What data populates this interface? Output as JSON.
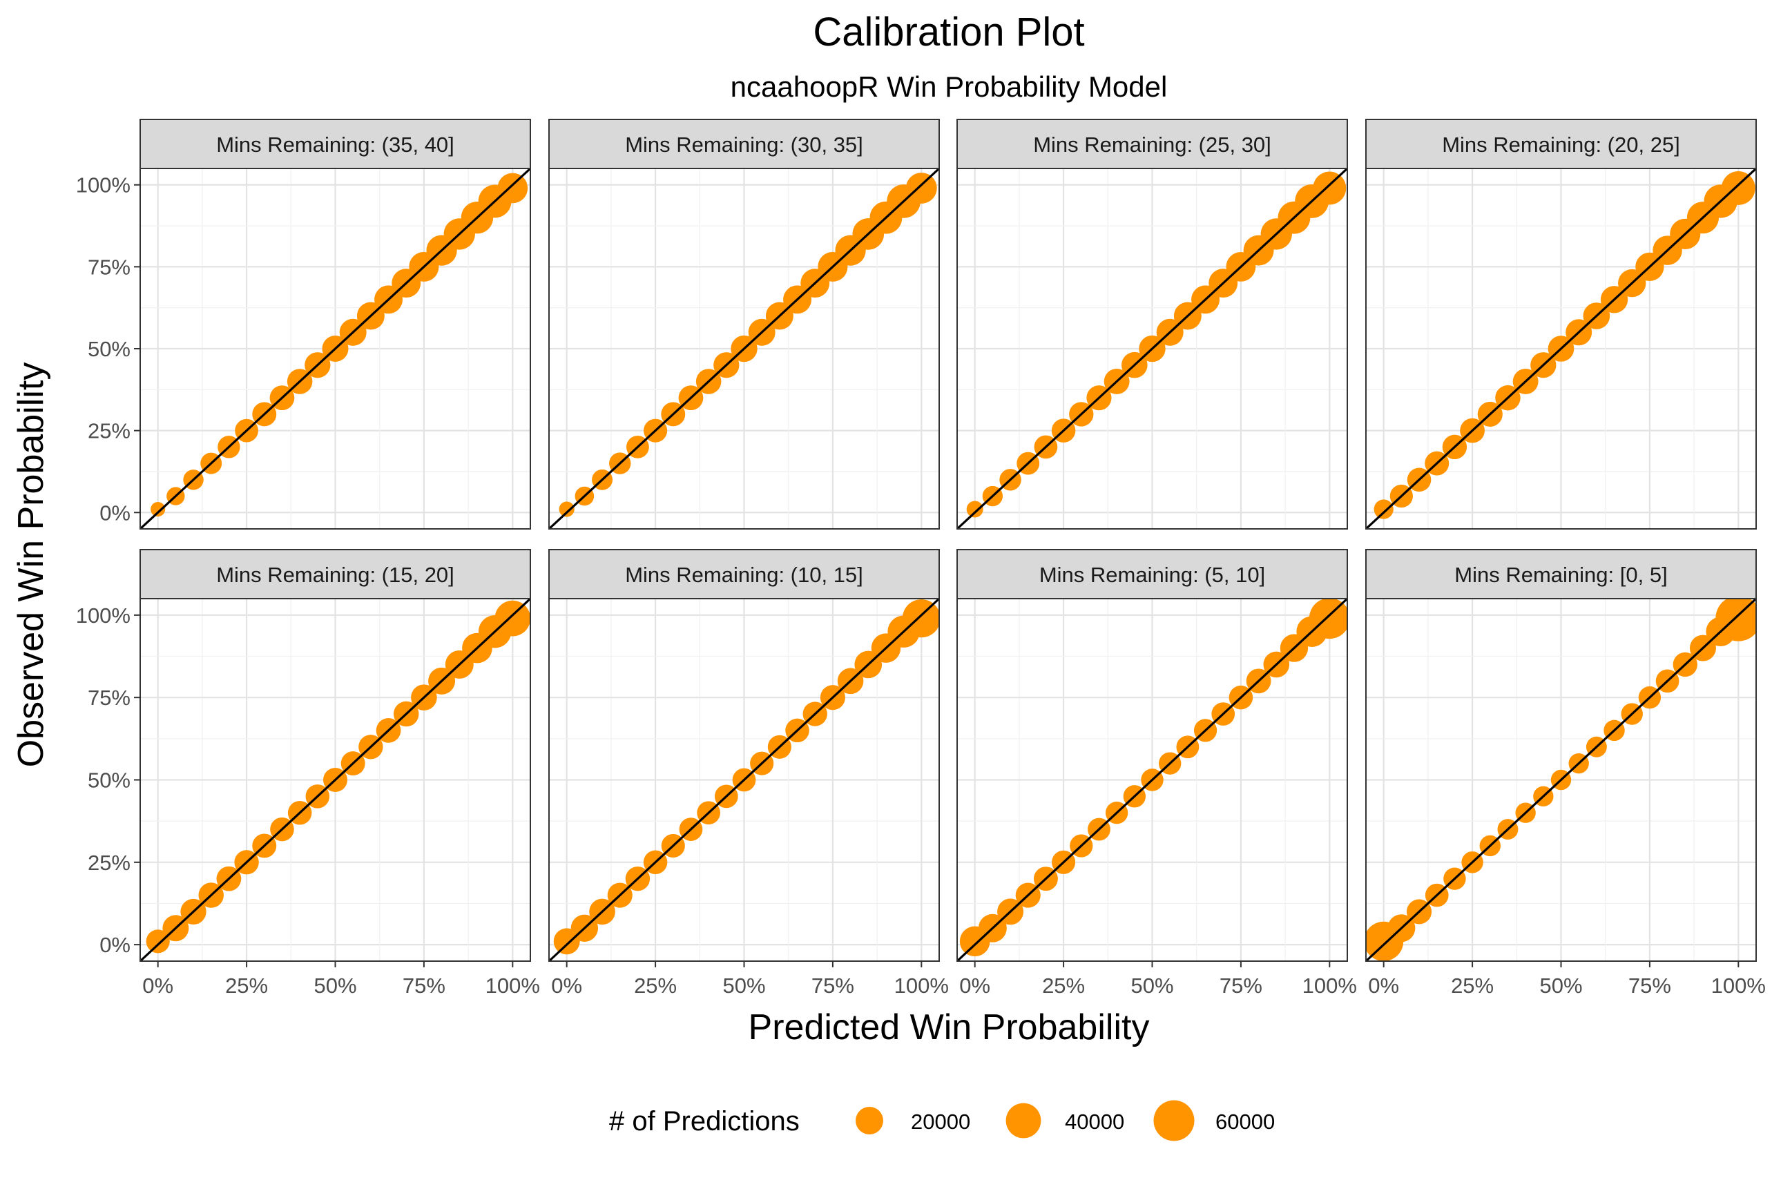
{
  "chart_data": {
    "type": "scatter",
    "title": "Calibration Plot",
    "subtitle": "ncaahoopR Win Probability Model",
    "xlabel": "Predicted Win Probability",
    "ylabel": "Observed Win Probability",
    "xlim": [
      -0.05,
      1.05
    ],
    "ylim": [
      -0.05,
      1.05
    ],
    "x_ticks": [
      0,
      0.25,
      0.5,
      0.75,
      1
    ],
    "y_ticks": [
      0,
      0.25,
      0.5,
      0.75,
      1
    ],
    "x_tick_labels": [
      "0%",
      "25%",
      "50%",
      "75%",
      "100%"
    ],
    "y_tick_labels": [
      "0%",
      "25%",
      "50%",
      "75%",
      "100%"
    ],
    "reference_line": "y = x",
    "point_color": "#FF9400",
    "grid": true,
    "facet_layout": "2 rows x 4 columns",
    "legend": {
      "title": "# of Predictions",
      "position": "bottom",
      "entries": [
        {
          "label": "20000",
          "value": 20000
        },
        {
          "label": "40000",
          "value": 40000
        },
        {
          "label": "60000",
          "value": 60000
        }
      ]
    },
    "x": [
      0,
      0.05,
      0.1,
      0.15,
      0.2,
      0.25,
      0.3,
      0.35,
      0.4,
      0.45,
      0.5,
      0.55,
      0.6,
      0.65,
      0.7,
      0.75,
      0.8,
      0.85,
      0.9,
      0.95,
      1
    ],
    "panels": [
      {
        "label": "Mins Remaining: (35, 40]",
        "observed": [
          0.01,
          0.05,
          0.1,
          0.15,
          0.2,
          0.25,
          0.3,
          0.35,
          0.4,
          0.45,
          0.5,
          0.55,
          0.6,
          0.65,
          0.7,
          0.75,
          0.8,
          0.85,
          0.9,
          0.95,
          0.99
        ],
        "counts": [
          1500,
          4500,
          7000,
          8500,
          10000,
          11500,
          13000,
          14000,
          15000,
          16000,
          17000,
          18500,
          20000,
          21500,
          23000,
          25000,
          27000,
          29000,
          31000,
          34000,
          26000
        ]
      },
      {
        "label": "Mins Remaining: (30, 35]",
        "observed": [
          0.01,
          0.05,
          0.1,
          0.15,
          0.2,
          0.25,
          0.3,
          0.35,
          0.4,
          0.45,
          0.5,
          0.55,
          0.6,
          0.65,
          0.7,
          0.75,
          0.8,
          0.85,
          0.9,
          0.95,
          0.99
        ],
        "counts": [
          2000,
          5500,
          7500,
          9000,
          10500,
          12000,
          13000,
          14000,
          15000,
          16000,
          17500,
          18500,
          20000,
          21500,
          23000,
          25000,
          27000,
          29500,
          32000,
          35500,
          28000
        ]
      },
      {
        "label": "Mins Remaining: (25, 30]",
        "observed": [
          0.01,
          0.05,
          0.1,
          0.15,
          0.2,
          0.25,
          0.3,
          0.35,
          0.4,
          0.45,
          0.5,
          0.55,
          0.6,
          0.65,
          0.7,
          0.75,
          0.8,
          0.85,
          0.9,
          0.95,
          0.99
        ],
        "counts": [
          3000,
          7000,
          9000,
          10500,
          11500,
          12500,
          13500,
          14500,
          15500,
          16500,
          17500,
          18500,
          20000,
          21500,
          23000,
          24500,
          26500,
          29000,
          32000,
          36000,
          34000
        ]
      },
      {
        "label": "Mins Remaining: (20, 25]",
        "observed": [
          0.01,
          0.05,
          0.1,
          0.15,
          0.2,
          0.25,
          0.3,
          0.35,
          0.4,
          0.45,
          0.5,
          0.55,
          0.6,
          0.65,
          0.7,
          0.75,
          0.8,
          0.85,
          0.9,
          0.95,
          0.99
        ],
        "counts": [
          6000,
          11000,
          12500,
          13000,
          13500,
          14000,
          14500,
          15000,
          15500,
          16000,
          16500,
          17000,
          18000,
          19000,
          20500,
          22000,
          24000,
          27000,
          30500,
          35000,
          36000
        ]
      },
      {
        "label": "Mins Remaining: (15, 20]",
        "observed": [
          0.01,
          0.05,
          0.1,
          0.15,
          0.2,
          0.25,
          0.3,
          0.35,
          0.4,
          0.45,
          0.5,
          0.55,
          0.6,
          0.65,
          0.7,
          0.75,
          0.8,
          0.85,
          0.9,
          0.95,
          0.99
        ],
        "counts": [
          12000,
          17000,
          16000,
          15000,
          14000,
          13500,
          13000,
          12500,
          12500,
          12500,
          13000,
          13000,
          13500,
          14000,
          15000,
          16500,
          18500,
          21500,
          26000,
          33000,
          42000
        ]
      },
      {
        "label": "Mins Remaining: (10, 15]",
        "observed": [
          0.01,
          0.05,
          0.1,
          0.15,
          0.2,
          0.25,
          0.3,
          0.35,
          0.4,
          0.45,
          0.5,
          0.55,
          0.6,
          0.65,
          0.7,
          0.75,
          0.8,
          0.85,
          0.9,
          0.95,
          0.99
        ],
        "counts": [
          17000,
          19000,
          16500,
          14500,
          13500,
          12500,
          12000,
          11500,
          11500,
          11500,
          11500,
          12000,
          12000,
          12500,
          13500,
          14500,
          16500,
          19500,
          24000,
          31000,
          50000
        ]
      },
      {
        "label": "Mins Remaining: (5, 10]",
        "observed": [
          0.01,
          0.05,
          0.1,
          0.15,
          0.2,
          0.25,
          0.3,
          0.35,
          0.4,
          0.45,
          0.5,
          0.55,
          0.6,
          0.65,
          0.7,
          0.75,
          0.8,
          0.85,
          0.9,
          0.95,
          0.99
        ],
        "counts": [
          26000,
          21500,
          17000,
          14500,
          13000,
          12000,
          11000,
          10500,
          10000,
          10000,
          10000,
          10000,
          10500,
          11000,
          11500,
          12500,
          14000,
          16500,
          20500,
          27500,
          60000
        ]
      },
      {
        "label": "Mins Remaining: [0, 5]",
        "observed": [
          0.01,
          0.05,
          0.1,
          0.15,
          0.2,
          0.25,
          0.3,
          0.35,
          0.4,
          0.45,
          0.5,
          0.55,
          0.6,
          0.65,
          0.7,
          0.75,
          0.8,
          0.85,
          0.9,
          0.95,
          0.99
        ],
        "counts": [
          55000,
          20000,
          14500,
          11500,
          10000,
          9000,
          8000,
          7500,
          7000,
          7000,
          7000,
          7000,
          7500,
          8000,
          9000,
          10000,
          11500,
          13500,
          17000,
          24000,
          80000
        ]
      }
    ]
  }
}
